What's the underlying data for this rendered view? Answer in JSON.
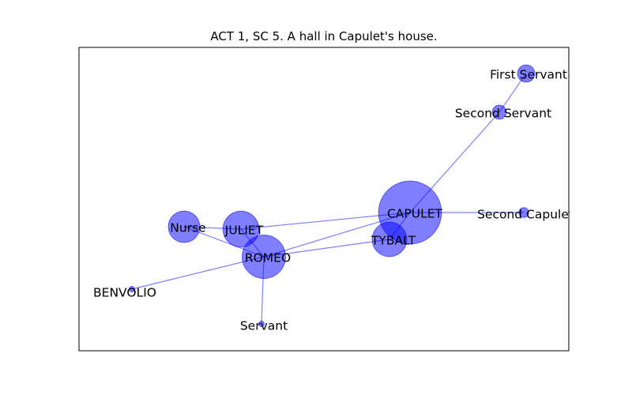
{
  "title": "ACT 1, SC 5. A hall in Capulet's house.",
  "colors": {
    "node": "#0000ff",
    "edge": "#0000ff"
  },
  "nodes": [
    {
      "id": "CAPULET",
      "label": "CAPULET",
      "weight": 40
    },
    {
      "id": "ROMEO",
      "label": "ROMEO",
      "weight": 19
    },
    {
      "id": "JULIET",
      "label": "JULIET",
      "weight": 13
    },
    {
      "id": "TYBALT",
      "label": "TYBALT",
      "weight": 12
    },
    {
      "id": "NURSE",
      "label": "Nurse",
      "weight": 10
    },
    {
      "id": "SECOND_SERVANT",
      "label": "Second Servant",
      "weight": 2
    },
    {
      "id": "FIRST_SERVANT",
      "label": "First Servant",
      "weight": 3
    },
    {
      "id": "SECOND_CAPULET",
      "label": "Second Capulet",
      "weight": 1
    },
    {
      "id": "BENVOLIO",
      "label": "BENVOLIO",
      "weight": 0.3
    },
    {
      "id": "SERVANT",
      "label": "Servant",
      "weight": 0.3
    }
  ],
  "edges": [
    [
      "CAPULET",
      "SECOND_SERVANT"
    ],
    [
      "SECOND_SERVANT",
      "FIRST_SERVANT"
    ],
    [
      "CAPULET",
      "SECOND_CAPULET"
    ],
    [
      "CAPULET",
      "JULIET"
    ],
    [
      "CAPULET",
      "TYBALT"
    ],
    [
      "CAPULET",
      "ROMEO"
    ],
    [
      "TYBALT",
      "ROMEO"
    ],
    [
      "JULIET",
      "NURSE"
    ],
    [
      "JULIET",
      "ROMEO"
    ],
    [
      "NURSE",
      "ROMEO"
    ],
    [
      "ROMEO",
      "BENVOLIO"
    ],
    [
      "ROMEO",
      "SERVANT"
    ]
  ]
}
